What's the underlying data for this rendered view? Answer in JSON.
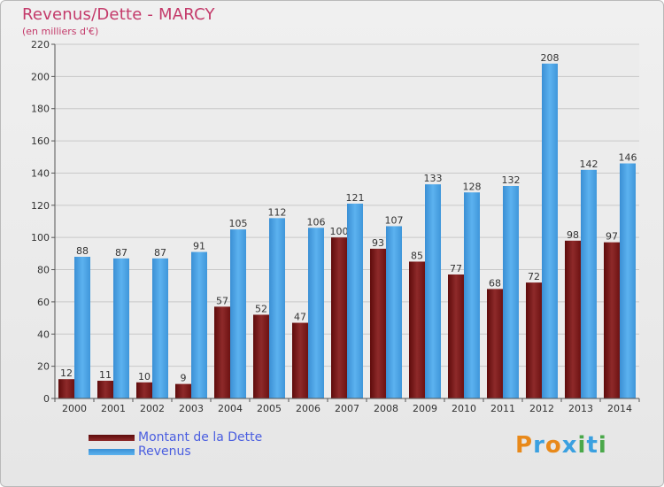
{
  "title": "Revenus/Dette - MARCY",
  "subtitle": "(en milliers d'€)",
  "logo": "Proxiti",
  "colors": {
    "dette": "#7a1515",
    "revenus": "#4aa3e6"
  },
  "chart_data": {
    "type": "bar",
    "categories": [
      "2000",
      "2001",
      "2002",
      "2003",
      "2004",
      "2005",
      "2006",
      "2007",
      "2008",
      "2009",
      "2010",
      "2011",
      "2012",
      "2013",
      "2014"
    ],
    "series": [
      {
        "name": "Montant de la Dette",
        "values": [
          12,
          11,
          10,
          9,
          57,
          52,
          47,
          100,
          93,
          85,
          77,
          68,
          72,
          98,
          97
        ]
      },
      {
        "name": "Revenus",
        "values": [
          88,
          87,
          87,
          91,
          105,
          112,
          106,
          121,
          107,
          133,
          128,
          132,
          208,
          142,
          146
        ]
      }
    ],
    "ylim": [
      0,
      220
    ],
    "yticks": [
      0,
      20,
      40,
      60,
      80,
      100,
      120,
      140,
      160,
      180,
      200,
      220
    ],
    "grid": true,
    "legend_position": "bottom-left"
  }
}
